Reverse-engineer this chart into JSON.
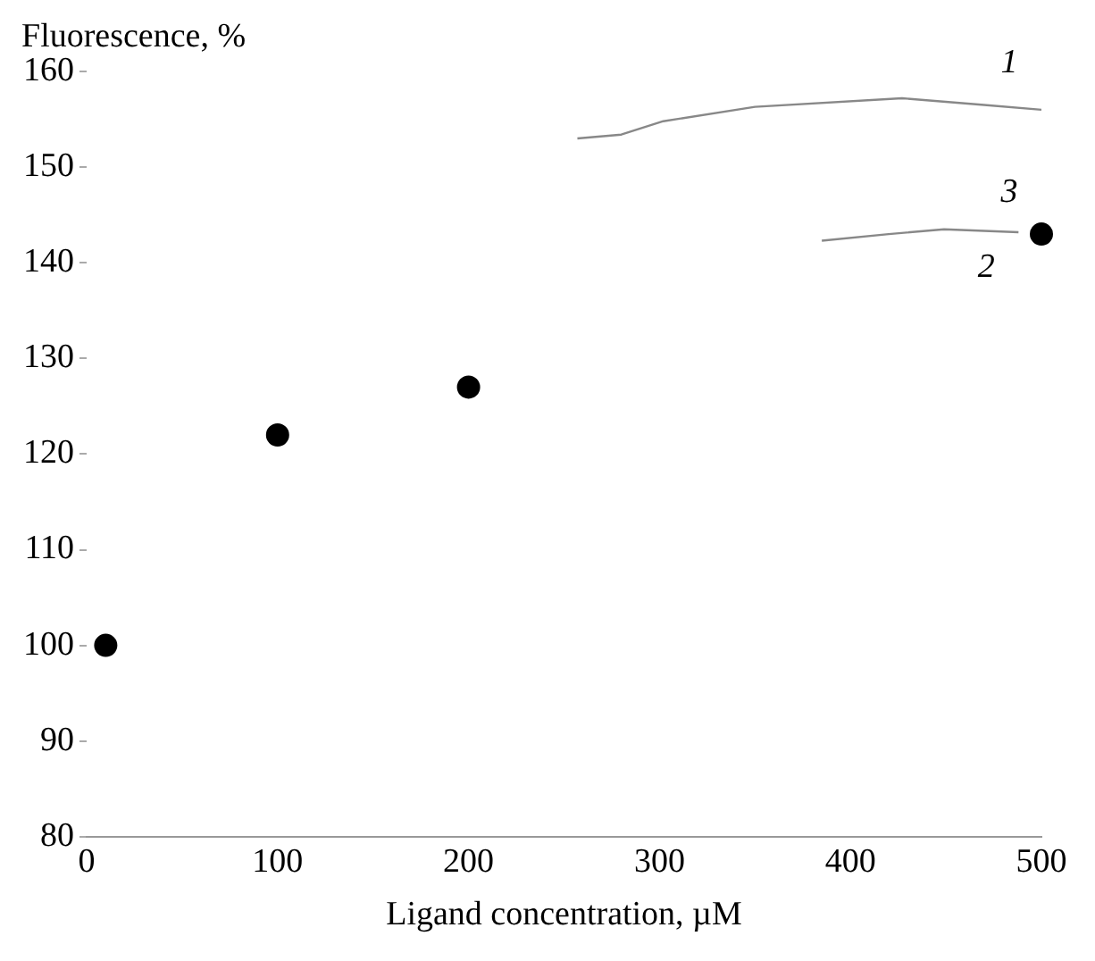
{
  "chart_data": {
    "type": "scatter",
    "xlabel": "Ligand concentration, µM",
    "ylabel": "Fluorescence, %",
    "xlim": [
      0,
      500
    ],
    "xticks": [
      0,
      100,
      200,
      300,
      400,
      500
    ],
    "ylim": [
      80,
      160
    ],
    "yticks": [
      80,
      90,
      100,
      110,
      120,
      130,
      140,
      150,
      160
    ],
    "grid": false,
    "legend": false,
    "marker": "circle",
    "series": [
      {
        "color": "#000000",
        "x": [
          10,
          100,
          200,
          500
        ],
        "values": [
          100,
          122,
          127,
          143
        ]
      },
      {
        "type": "line",
        "name": "1",
        "color": "#888888",
        "marker": "none",
        "x": [
          257,
          280,
          302,
          350,
          427,
          470,
          500
        ],
        "values": [
          153,
          153.4,
          154.8,
          156.3,
          157.2,
          156.5,
          156
        ]
      },
      {
        "type": "line",
        "name": "2",
        "color": "#888888",
        "marker": "none",
        "x": [
          385,
          420,
          449,
          488
        ],
        "values": [
          142.3,
          143,
          143.5,
          143.2
        ]
      }
    ],
    "annotations": [
      "3"
    ]
  }
}
